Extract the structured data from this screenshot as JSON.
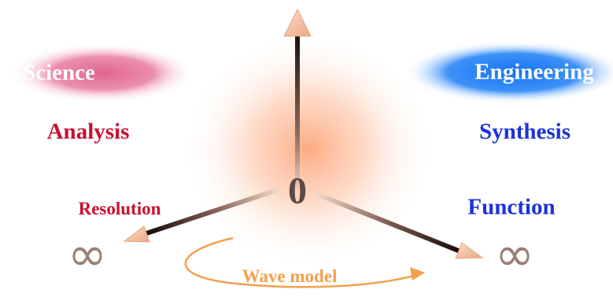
{
  "diagram": {
    "center_label": "0",
    "left": {
      "blob_label": "Science",
      "heading": "Analysis",
      "sub": "Resolution",
      "infinity": "∞"
    },
    "right": {
      "blob_label": "Engineering",
      "heading": "Synthesis",
      "sub": "Function",
      "infinity": "∞"
    },
    "bottom_label": "Wave model"
  },
  "colors": {
    "science_blob": "#e36e98",
    "engineering_blob": "#1f7ff5",
    "analysis_text": "#c8102e",
    "synthesis_text": "#1d32d6",
    "glow": "#fcae84",
    "wave_model": "#f3a04e",
    "arrow_dark": "#1c0c08",
    "arrow_light": "#f8c6a8",
    "center_text": "#5c4a44"
  }
}
